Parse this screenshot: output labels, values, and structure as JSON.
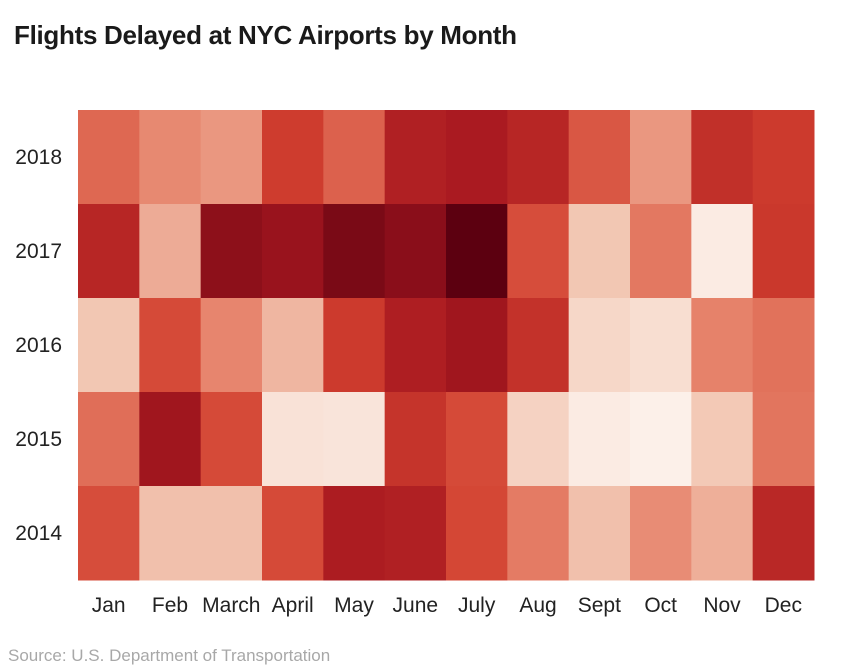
{
  "chart_data": {
    "type": "heatmap",
    "title": "Flights Delayed at NYC Airports by Month",
    "source": "Source: U.S. Department of Transportation",
    "x_categories": [
      "Jan",
      "Feb",
      "March",
      "April",
      "May",
      "June",
      "July",
      "Aug",
      "Sept",
      "Oct",
      "Nov",
      "Dec"
    ],
    "y_categories": [
      "2018",
      "2017",
      "2016",
      "2015",
      "2014"
    ],
    "value_scale": "relative delay intensity (0 = lowest, 1 = highest)",
    "color_scale": [
      "#fdf4ef",
      "#f2c7b3",
      "#e6826a",
      "#d2402f",
      "#a81820",
      "#5c0010"
    ],
    "values": [
      [
        0.48,
        0.38,
        0.34,
        0.62,
        0.5,
        0.76,
        0.79,
        0.73,
        0.53,
        0.34,
        0.68,
        0.63
      ],
      [
        0.73,
        0.28,
        0.87,
        0.84,
        0.92,
        0.88,
        1.0,
        0.56,
        0.2,
        0.43,
        0.04,
        0.64
      ],
      [
        0.2,
        0.57,
        0.39,
        0.25,
        0.63,
        0.77,
        0.82,
        0.67,
        0.13,
        0.1,
        0.4,
        0.45
      ],
      [
        0.46,
        0.82,
        0.57,
        0.08,
        0.07,
        0.66,
        0.57,
        0.15,
        0.04,
        0.02,
        0.19,
        0.44
      ],
      [
        0.56,
        0.22,
        0.22,
        0.57,
        0.78,
        0.76,
        0.58,
        0.42,
        0.22,
        0.37,
        0.27,
        0.72
      ]
    ]
  }
}
